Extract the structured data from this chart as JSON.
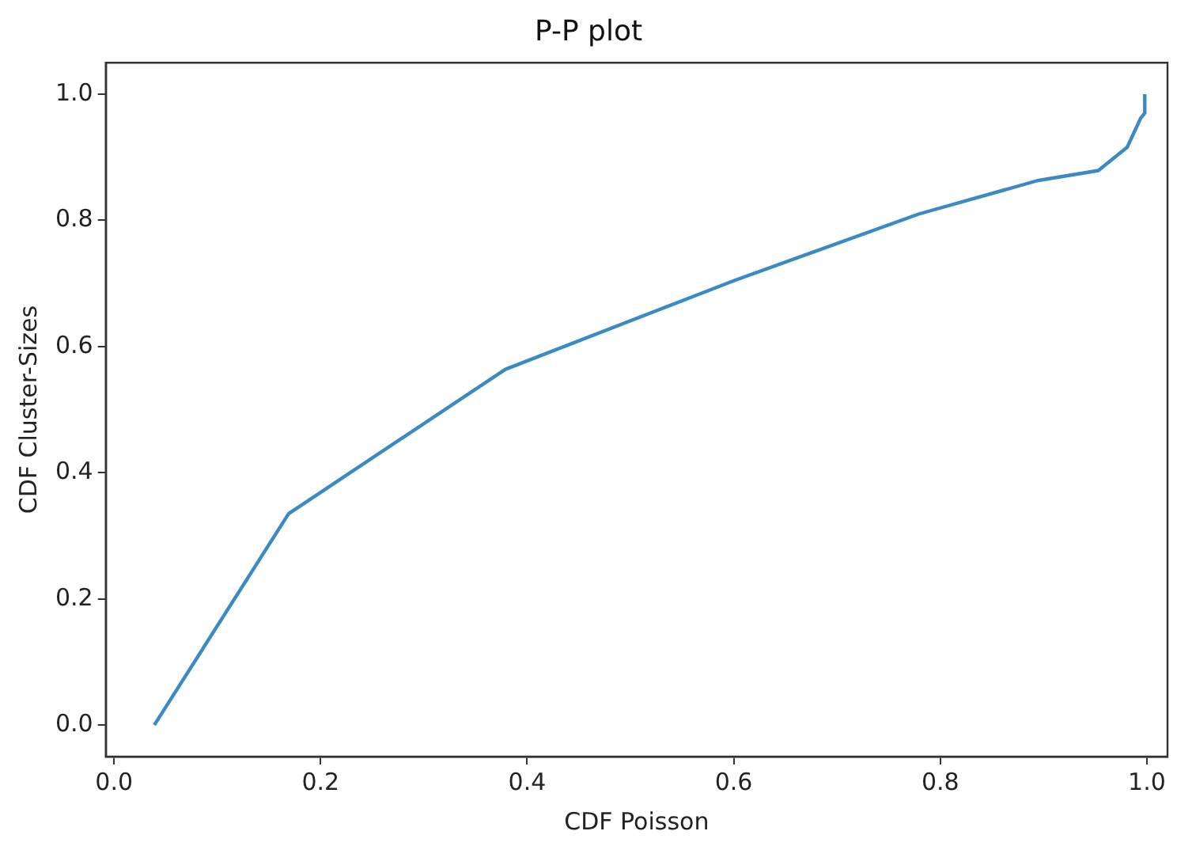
{
  "chart_data": {
    "type": "line",
    "title": "P-P plot",
    "xlabel": "CDF Poisson",
    "ylabel": "CDF Cluster-Sizes",
    "x": [
      0.039,
      0.169,
      0.379,
      0.601,
      0.779,
      0.894,
      0.953,
      0.981,
      0.994,
      0.998,
      0.998
    ],
    "series": [
      {
        "color": "#3a8ac4",
        "values": [
          0.0,
          0.335,
          0.564,
          0.705,
          0.81,
          0.863,
          0.879,
          0.916,
          0.962,
          0.97,
          1.0
        ]
      }
    ],
    "xlim": [
      -0.008,
      1.02
    ],
    "ylim": [
      -0.05,
      1.05
    ],
    "xticks": [
      {
        "value": 0,
        "label": "0.0"
      },
      0.2,
      0.4,
      0.6,
      0.8,
      {
        "value": 1,
        "label": "1.0"
      }
    ],
    "yticks": [
      {
        "value": 0,
        "label": "0.0"
      },
      0.2,
      0.4,
      0.6,
      0.8,
      {
        "value": 1,
        "label": "1.0"
      }
    ],
    "grid": false,
    "legend": false,
    "marker": "none",
    "line_style": "solid"
  }
}
